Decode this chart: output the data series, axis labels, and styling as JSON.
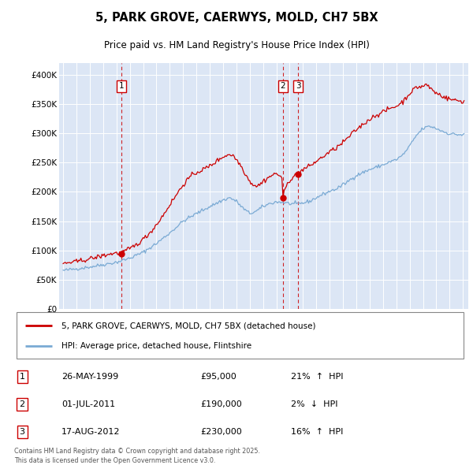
{
  "title": "5, PARK GROVE, CAERWYS, MOLD, CH7 5BX",
  "subtitle": "Price paid vs. HM Land Registry's House Price Index (HPI)",
  "bg_color": "#dce6f5",
  "line1_color": "#cc0000",
  "line2_color": "#7aaad4",
  "legend1": "5, PARK GROVE, CAERWYS, MOLD, CH7 5BX (detached house)",
  "legend2": "HPI: Average price, detached house, Flintshire",
  "transactions": [
    {
      "num": 1,
      "date": "26-MAY-1999",
      "price": 95000,
      "pct": "21%",
      "dir": "↑",
      "x": 1999.38
    },
    {
      "num": 2,
      "date": "01-JUL-2011",
      "price": 190000,
      "pct": "2%",
      "dir": "↓",
      "x": 2011.5
    },
    {
      "num": 3,
      "date": "17-AUG-2012",
      "price": 230000,
      "pct": "16%",
      "dir": "↑",
      "x": 2012.63
    }
  ],
  "footer1": "Contains HM Land Registry data © Crown copyright and database right 2025.",
  "footer2": "This data is licensed under the Open Government Licence v3.0.",
  "ylim": [
    0,
    420000
  ],
  "xlim": [
    1994.7,
    2025.4
  ],
  "yticks": [
    0,
    50000,
    100000,
    150000,
    200000,
    250000,
    300000,
    350000,
    400000
  ],
  "ytick_labels": [
    "£0",
    "£50K",
    "£100K",
    "£150K",
    "£200K",
    "£250K",
    "£300K",
    "£350K",
    "£400K"
  ]
}
